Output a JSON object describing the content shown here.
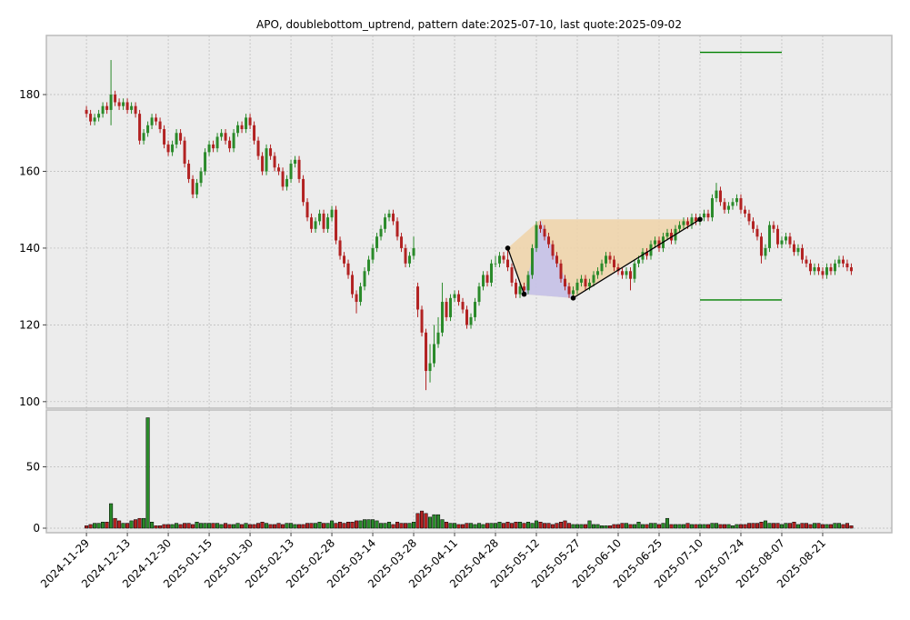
{
  "chart_data": {
    "type": "candlestick",
    "title": "APO, doublebottom_uptrend, pattern date:2025-07-10, last quote:2025-09-02",
    "up_color": "#2a8a2a",
    "down_color": "#b22222",
    "grid": true,
    "xlim": [
      -9.8,
      196.9
    ],
    "xticks": [
      {
        "value": 0,
        "label": "2024-11-29"
      },
      {
        "value": 10,
        "label": "2024-12-13"
      },
      {
        "value": 20,
        "label": "2024-12-30"
      },
      {
        "value": 30,
        "label": "2025-01-15"
      },
      {
        "value": 40,
        "label": "2025-01-30"
      },
      {
        "value": 50,
        "label": "2025-02-13"
      },
      {
        "value": 60,
        "label": "2025-02-28"
      },
      {
        "value": 70,
        "label": "2025-03-14"
      },
      {
        "value": 80,
        "label": "2025-03-28"
      },
      {
        "value": 90,
        "label": "2025-04-11"
      },
      {
        "value": 100,
        "label": "2025-04-28"
      },
      {
        "value": 110,
        "label": "2025-05-12"
      },
      {
        "value": 120,
        "label": "2025-05-27"
      },
      {
        "value": 130,
        "label": "2025-06-10"
      },
      {
        "value": 140,
        "label": "2025-06-25"
      },
      {
        "value": 150,
        "label": "2025-07-10"
      },
      {
        "value": 160,
        "label": "2025-07-24"
      },
      {
        "value": 170,
        "label": "2025-08-07"
      },
      {
        "value": 180,
        "label": "2025-08-21"
      }
    ],
    "ylim": [
      98.3,
      195.4
    ],
    "yticks": [
      100,
      120,
      140,
      160,
      180
    ],
    "volume_ylim": [
      -3.7,
      96.3
    ],
    "volume_yticks": [
      0,
      50
    ],
    "candles": [
      [
        176,
        177,
        174,
        175
      ],
      [
        175,
        176,
        172,
        173
      ],
      [
        173,
        175,
        172,
        174
      ],
      [
        174,
        176,
        173,
        175
      ],
      [
        175,
        178,
        174,
        177
      ],
      [
        177,
        178,
        175,
        176
      ],
      [
        176,
        189,
        172,
        180
      ],
      [
        180,
        181,
        177,
        178
      ],
      [
        178,
        179,
        176,
        177
      ],
      [
        177,
        179,
        176,
        178
      ],
      [
        178,
        179,
        175,
        176
      ],
      [
        176,
        178,
        175,
        177
      ],
      [
        177,
        178,
        174,
        175
      ],
      [
        175,
        176,
        167,
        168
      ],
      [
        168,
        171,
        167,
        170
      ],
      [
        170,
        173,
        169,
        172
      ],
      [
        172,
        175,
        171,
        174
      ],
      [
        174,
        175,
        172,
        173
      ],
      [
        173,
        174,
        170,
        171
      ],
      [
        171,
        172,
        166,
        167
      ],
      [
        167,
        168,
        164,
        165
      ],
      [
        165,
        168,
        164,
        167
      ],
      [
        167,
        171,
        166,
        170
      ],
      [
        170,
        171,
        167,
        168
      ],
      [
        168,
        169,
        161,
        162
      ],
      [
        162,
        163,
        157,
        158
      ],
      [
        158,
        159,
        153,
        154
      ],
      [
        154,
        158,
        153,
        157
      ],
      [
        157,
        161,
        156,
        160
      ],
      [
        160,
        166,
        159,
        165
      ],
      [
        165,
        168,
        164,
        167
      ],
      [
        167,
        168,
        165,
        166
      ],
      [
        166,
        170,
        165,
        169
      ],
      [
        169,
        171,
        168,
        170
      ],
      [
        170,
        171,
        167,
        168
      ],
      [
        168,
        169,
        165,
        166
      ],
      [
        166,
        171,
        165,
        170
      ],
      [
        170,
        173,
        169,
        172
      ],
      [
        172,
        173,
        170,
        171
      ],
      [
        171,
        175,
        170,
        174
      ],
      [
        174,
        175,
        171,
        172
      ],
      [
        172,
        173,
        167,
        168
      ],
      [
        168,
        169,
        163,
        164
      ],
      [
        164,
        165,
        159,
        160
      ],
      [
        160,
        167,
        159,
        166
      ],
      [
        166,
        167,
        163,
        164
      ],
      [
        164,
        165,
        160,
        161
      ],
      [
        161,
        162,
        159,
        160
      ],
      [
        160,
        161,
        155,
        156
      ],
      [
        156,
        159,
        155,
        158
      ],
      [
        158,
        163,
        157,
        162
      ],
      [
        162,
        164,
        161,
        163
      ],
      [
        163,
        164,
        157,
        158
      ],
      [
        158,
        159,
        151,
        152
      ],
      [
        152,
        153,
        147,
        148
      ],
      [
        148,
        149,
        144,
        145
      ],
      [
        145,
        148,
        144,
        147
      ],
      [
        147,
        150,
        146,
        149
      ],
      [
        149,
        150,
        144,
        145
      ],
      [
        145,
        149,
        144,
        148
      ],
      [
        148,
        151,
        147,
        150
      ],
      [
        150,
        151,
        141,
        142
      ],
      [
        142,
        143,
        137,
        138
      ],
      [
        138,
        139,
        135,
        136
      ],
      [
        136,
        137,
        132,
        133
      ],
      [
        133,
        134,
        127,
        128
      ],
      [
        128,
        129,
        123,
        126
      ],
      [
        126,
        131,
        125,
        130
      ],
      [
        130,
        135,
        129,
        134
      ],
      [
        134,
        138,
        133,
        137
      ],
      [
        137,
        141,
        136,
        140
      ],
      [
        140,
        144,
        139,
        143
      ],
      [
        143,
        146,
        142,
        145
      ],
      [
        145,
        149,
        144,
        148
      ],
      [
        148,
        150,
        147,
        149
      ],
      [
        149,
        150,
        146,
        147
      ],
      [
        147,
        148,
        142,
        143
      ],
      [
        143,
        144,
        139,
        140
      ],
      [
        140,
        141,
        135,
        136
      ],
      [
        136,
        139,
        135,
        138
      ],
      [
        138,
        143,
        137,
        140
      ],
      [
        130,
        131,
        122,
        124
      ],
      [
        124,
        125,
        117,
        118
      ],
      [
        118,
        119,
        103,
        108
      ],
      [
        108,
        115,
        105,
        110
      ],
      [
        110,
        120,
        109,
        115
      ],
      [
        115,
        122,
        114,
        118
      ],
      [
        118,
        131,
        117,
        126
      ],
      [
        126,
        127,
        121,
        122
      ],
      [
        122,
        128,
        121,
        127
      ],
      [
        127,
        129,
        126,
        128
      ],
      [
        128,
        129,
        125,
        126
      ],
      [
        126,
        127,
        123,
        124
      ],
      [
        124,
        125,
        119,
        120
      ],
      [
        120,
        123,
        119,
        122
      ],
      [
        122,
        127,
        121,
        126
      ],
      [
        126,
        131,
        125,
        130
      ],
      [
        130,
        134,
        129,
        133
      ],
      [
        133,
        134,
        130,
        131
      ],
      [
        131,
        137,
        130,
        136
      ],
      [
        136,
        138,
        135,
        136
      ],
      [
        136,
        139,
        135,
        138
      ],
      [
        138,
        139,
        136,
        137
      ],
      [
        137,
        140,
        134,
        135
      ],
      [
        135,
        136,
        130,
        131
      ],
      [
        131,
        132,
        127,
        128
      ],
      [
        128,
        131,
        127,
        130
      ],
      [
        130,
        131,
        128,
        129
      ],
      [
        129,
        134,
        128,
        133
      ],
      [
        133,
        141,
        132,
        140
      ],
      [
        140,
        147,
        139,
        146
      ],
      [
        146,
        147,
        144,
        145
      ],
      [
        145,
        146,
        142,
        143
      ],
      [
        143,
        144,
        140,
        141
      ],
      [
        141,
        142,
        137,
        138
      ],
      [
        138,
        139,
        135,
        136
      ],
      [
        136,
        137,
        131,
        132
      ],
      [
        132,
        133,
        129,
        130
      ],
      [
        130,
        131,
        127,
        128
      ],
      [
        128,
        130,
        127,
        129
      ],
      [
        129,
        132,
        128,
        131
      ],
      [
        131,
        133,
        130,
        132
      ],
      [
        132,
        133,
        129,
        130
      ],
      [
        130,
        132,
        129,
        131
      ],
      [
        131,
        134,
        130,
        133
      ],
      [
        133,
        135,
        132,
        134
      ],
      [
        134,
        137,
        133,
        136
      ],
      [
        136,
        139,
        135,
        138
      ],
      [
        138,
        139,
        136,
        137
      ],
      [
        137,
        138,
        134,
        135
      ],
      [
        135,
        136,
        133,
        134
      ],
      [
        134,
        135,
        132,
        133
      ],
      [
        133,
        135,
        132,
        134
      ],
      [
        134,
        135,
        129,
        132
      ],
      [
        132,
        137,
        131,
        136
      ],
      [
        136,
        138,
        135,
        137
      ],
      [
        137,
        140,
        136,
        139
      ],
      [
        139,
        140,
        137,
        138
      ],
      [
        138,
        142,
        137,
        141
      ],
      [
        141,
        143,
        140,
        142
      ],
      [
        142,
        143,
        139,
        140
      ],
      [
        140,
        144,
        139,
        143
      ],
      [
        143,
        145,
        142,
        144
      ],
      [
        144,
        145,
        141,
        142
      ],
      [
        142,
        146,
        141,
        145
      ],
      [
        145,
        147,
        144,
        146
      ],
      [
        146,
        148,
        145,
        147
      ],
      [
        147,
        148,
        145,
        146
      ],
      [
        146,
        149,
        145,
        148
      ],
      [
        148,
        149,
        146,
        147
      ],
      [
        147,
        149,
        146,
        148
      ],
      [
        148,
        150,
        147,
        149
      ],
      [
        149,
        150,
        147,
        148
      ],
      [
        148,
        154,
        147,
        153
      ],
      [
        153,
        157,
        152,
        155
      ],
      [
        155,
        156,
        151,
        152
      ],
      [
        152,
        153,
        149,
        150
      ],
      [
        150,
        152,
        149,
        151
      ],
      [
        151,
        153,
        150,
        152
      ],
      [
        152,
        154,
        151,
        153
      ],
      [
        153,
        154,
        149,
        150
      ],
      [
        150,
        151,
        148,
        149
      ],
      [
        149,
        150,
        146,
        147
      ],
      [
        147,
        148,
        144,
        145
      ],
      [
        145,
        146,
        142,
        143
      ],
      [
        143,
        144,
        136,
        138
      ],
      [
        138,
        141,
        137,
        140
      ],
      [
        140,
        147,
        139,
        146
      ],
      [
        146,
        147,
        144,
        145
      ],
      [
        145,
        146,
        140,
        141
      ],
      [
        141,
        143,
        140,
        142
      ],
      [
        142,
        144,
        141,
        143
      ],
      [
        143,
        144,
        140,
        141
      ],
      [
        141,
        142,
        138,
        139
      ],
      [
        139,
        141,
        138,
        140
      ],
      [
        140,
        141,
        136,
        137
      ],
      [
        137,
        138,
        135,
        136
      ],
      [
        136,
        137,
        133,
        134
      ],
      [
        134,
        136,
        133,
        135
      ],
      [
        135,
        136,
        133,
        134
      ],
      [
        134,
        135,
        132,
        133
      ],
      [
        133,
        136,
        132,
        135
      ],
      [
        135,
        136,
        133,
        134
      ],
      [
        134,
        137,
        133,
        136
      ],
      [
        136,
        138,
        135,
        137
      ],
      [
        137,
        138,
        135,
        136
      ],
      [
        136,
        137,
        134,
        135
      ],
      [
        135,
        136,
        133,
        134
      ]
    ],
    "volume": [
      2,
      3,
      4,
      4,
      5,
      5,
      20,
      8,
      6,
      4,
      4,
      6,
      7,
      8,
      8,
      90,
      5,
      2,
      2,
      3,
      3,
      3,
      4,
      3,
      4,
      4,
      3,
      5,
      4,
      4,
      4,
      4,
      4,
      3,
      4,
      3,
      3,
      4,
      3,
      4,
      3,
      3,
      4,
      5,
      4,
      3,
      3,
      4,
      3,
      4,
      4,
      3,
      3,
      3,
      4,
      4,
      4,
      5,
      4,
      4,
      6,
      4,
      5,
      4,
      5,
      5,
      6,
      6,
      7,
      7,
      7,
      6,
      4,
      4,
      5,
      3,
      5,
      4,
      4,
      4,
      5,
      12,
      14,
      12,
      9,
      11,
      11,
      7,
      5,
      4,
      4,
      3,
      3,
      4,
      4,
      3,
      4,
      3,
      4,
      4,
      4,
      5,
      4,
      5,
      4,
      5,
      5,
      4,
      5,
      4,
      6,
      5,
      4,
      4,
      3,
      4,
      5,
      6,
      4,
      3,
      3,
      3,
      3,
      6,
      3,
      3,
      2,
      2,
      2,
      3,
      3,
      4,
      4,
      3,
      3,
      5,
      3,
      3,
      4,
      4,
      3,
      4,
      8,
      3,
      3,
      3,
      3,
      4,
      3,
      3,
      3,
      3,
      3,
      4,
      4,
      3,
      3,
      3,
      2,
      3,
      3,
      3,
      4,
      4,
      4,
      5,
      6,
      4,
      4,
      4,
      3,
      4,
      4,
      5,
      3,
      4,
      4,
      3,
      4,
      4,
      3,
      3,
      3,
      4,
      4,
      3,
      4,
      2
    ],
    "pattern_points": [
      [
        103,
        140
      ],
      [
        107,
        128
      ],
      [
        119,
        127
      ],
      [
        150,
        147.5
      ]
    ],
    "pattern_color": "#000000",
    "shade_upper": [
      [
        103,
        140
      ],
      [
        111,
        147.5
      ],
      [
        150,
        147.5
      ],
      [
        119,
        127
      ],
      [
        107,
        128
      ]
    ],
    "shade_upper_color": "#f0d3a8",
    "shade_lower": [
      [
        107,
        128
      ],
      [
        111,
        147.5
      ],
      [
        119,
        127
      ]
    ],
    "shade_lower_color": "#c2c2f0",
    "target_levels": [
      191,
      126.5
    ],
    "target_x": [
      150,
      170
    ],
    "target_color": "#008000"
  }
}
